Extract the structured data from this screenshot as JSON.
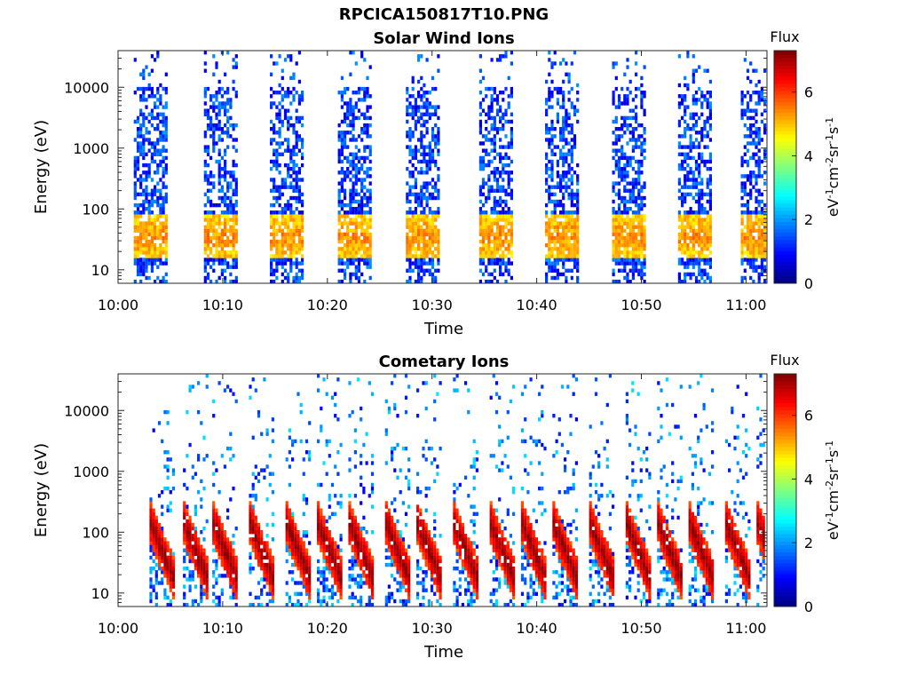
{
  "figure_title": "RPCICA150817T10.PNG",
  "chart_data": [
    {
      "type": "heatmap",
      "title": "Solar Wind Ions",
      "xlabel": "Time",
      "ylabel": "Energy (eV)",
      "x_ticks": [
        "10:00",
        "10:10",
        "10:20",
        "10:30",
        "10:40",
        "10:50",
        "11:00"
      ],
      "y_ticks": [
        "10",
        "100",
        "1000",
        "10000"
      ],
      "y_scale": "log",
      "ylim": [
        6,
        40000
      ],
      "xlim_minutes": [
        0,
        62
      ],
      "colorbar": {
        "label": "Flux",
        "units": "eV⁻¹cm⁻²sr⁻¹s⁻¹",
        "ticks": [
          "0",
          "2",
          "4",
          "6"
        ],
        "range": [
          0,
          7.3
        ]
      },
      "scan_minutes": [
        1.5,
        8.2,
        14.5,
        21.0,
        27.5,
        34.5,
        40.8,
        47.2,
        53.5,
        59.5
      ],
      "peak_energy_ev": 35,
      "peak_flux": 5
    },
    {
      "type": "heatmap",
      "title": "Cometary Ions",
      "xlabel": "Time",
      "ylabel": "Energy (eV)",
      "x_ticks": [
        "10:00",
        "10:10",
        "10:20",
        "10:30",
        "10:40",
        "10:50",
        "11:00"
      ],
      "y_ticks": [
        "10",
        "100",
        "1000",
        "10000"
      ],
      "y_scale": "log",
      "ylim": [
        6,
        40000
      ],
      "xlim_minutes": [
        0,
        62
      ],
      "colorbar": {
        "label": "Flux",
        "units": "eV⁻¹cm⁻²sr⁻¹s⁻¹",
        "ticks": [
          "0",
          "2",
          "4",
          "6"
        ],
        "range": [
          0,
          7.3
        ]
      },
      "scan_minutes": [
        3.0,
        6.2,
        9.0,
        12.5,
        16.0,
        19.0,
        22.0,
        25.5,
        28.5,
        32.0,
        35.5,
        38.5,
        41.5,
        45.0,
        48.5,
        51.5,
        54.5,
        58.0,
        61.0
      ],
      "peak_energy_ev": 35,
      "peak_flux": 7
    }
  ]
}
